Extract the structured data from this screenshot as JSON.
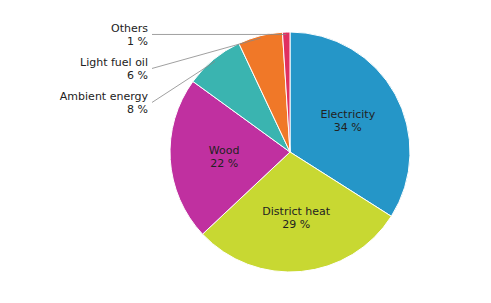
{
  "chart_data": {
    "type": "pie",
    "categories": [
      "Electricity",
      "District heat",
      "Wood",
      "Ambient energy",
      "Light fuel oil",
      "Others"
    ],
    "values": [
      34,
      29,
      22,
      8,
      6,
      1
    ],
    "value_labels": [
      "34 %",
      "29 %",
      "22 %",
      "8 %",
      "6 %",
      "1 %"
    ],
    "colors": [
      "#2596c8",
      "#c8d832",
      "#c030a0",
      "#3ab4b0",
      "#f07828",
      "#e03060"
    ],
    "data_labels": true
  }
}
